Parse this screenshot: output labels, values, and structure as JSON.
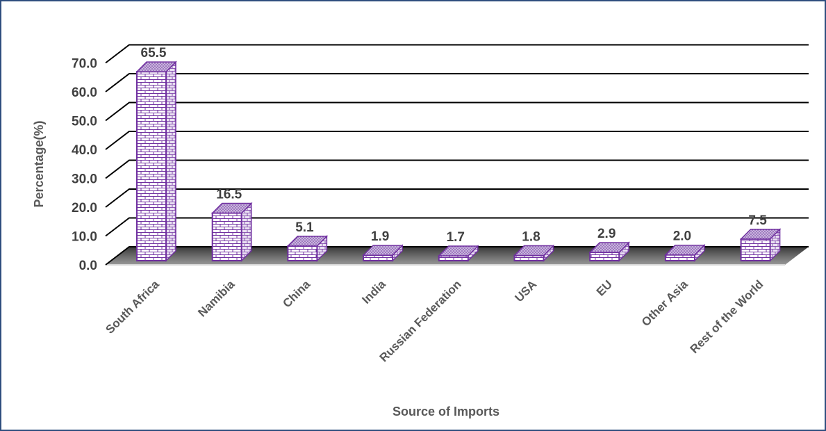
{
  "chart_data": {
    "type": "bar",
    "style": "3d-column",
    "categories": [
      "South Africa",
      "Namibia",
      "China",
      "India",
      "Russian Federation",
      "USA",
      "EU",
      "Other Asia",
      "Rest of the World"
    ],
    "values": [
      65.5,
      16.5,
      5.1,
      1.9,
      1.7,
      1.8,
      2.9,
      2.0,
      7.5
    ],
    "data_labels": [
      "65.5",
      "16.5",
      "5.1",
      "1.9",
      "1.7",
      "1.8",
      "2.9",
      "2.0",
      "7.5"
    ],
    "xlabel": "Source of Imports",
    "ylabel": "Percentage(%)",
    "ylim": [
      0,
      70
    ],
    "yticks": [
      "0.0",
      "10.0",
      "20.0",
      "30.0",
      "40.0",
      "50.0",
      "60.0",
      "70.0"
    ],
    "grid": true,
    "legend": "none",
    "colors": {
      "bar_fill": "#ffffff",
      "bar_pattern": "#7030a0",
      "bar_edge": "#7030a0",
      "bar_top": "#b9a3d0",
      "grid": "#000000",
      "floor_shadow": "#595959"
    }
  }
}
